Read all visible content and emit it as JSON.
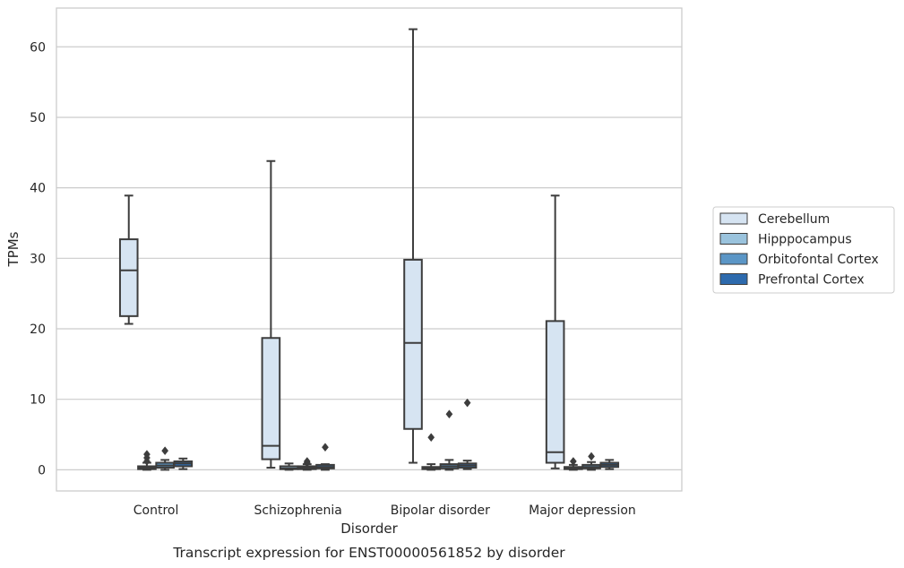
{
  "chart_data": {
    "type": "box",
    "title": "",
    "caption": "Transcript expression for ENST00000561852 by disorder",
    "xlabel": "Disorder",
    "ylabel": "TPMs",
    "ylim": [
      -3,
      65.5
    ],
    "yticks": [
      0,
      10,
      20,
      30,
      40,
      50,
      60
    ],
    "grid": "horizontal",
    "legend_placement": "right",
    "categories": [
      "Control",
      "Schizophrenia",
      "Bipolar disorder",
      "Major depression"
    ],
    "series": [
      {
        "name": "Cerebellum",
        "color": "#d6e4f2",
        "boxes": [
          {
            "whislo": 20.7,
            "q1": 21.8,
            "med": 28.3,
            "q3": 32.7,
            "whishi": 38.9,
            "fliers": []
          },
          {
            "whislo": 0.3,
            "q1": 1.5,
            "med": 3.4,
            "q3": 18.7,
            "whishi": 43.8,
            "fliers": []
          },
          {
            "whislo": 1.0,
            "q1": 5.8,
            "med": 18.0,
            "q3": 29.8,
            "whishi": 62.5,
            "fliers": []
          },
          {
            "whislo": 0.2,
            "q1": 1.0,
            "med": 2.5,
            "q3": 21.1,
            "whishi": 38.9,
            "fliers": []
          }
        ]
      },
      {
        "name": "Hipppocampus",
        "color": "#9ac3dd",
        "boxes": [
          {
            "whislo": 0.0,
            "q1": 0.1,
            "med": 0.3,
            "q3": 0.5,
            "whishi": 1.0,
            "fliers": [
              1.2,
              1.7,
              2.2
            ]
          },
          {
            "whislo": 0.0,
            "q1": 0.1,
            "med": 0.2,
            "q3": 0.5,
            "whishi": 0.9,
            "fliers": []
          },
          {
            "whislo": 0.0,
            "q1": 0.1,
            "med": 0.2,
            "q3": 0.4,
            "whishi": 0.8,
            "fliers": [
              4.6
            ]
          },
          {
            "whislo": 0.0,
            "q1": 0.1,
            "med": 0.2,
            "q3": 0.4,
            "whishi": 0.7,
            "fliers": [
              1.2
            ]
          }
        ]
      },
      {
        "name": "Orbitofontal Cortex",
        "color": "#5b96c6",
        "boxes": [
          {
            "whislo": 0.0,
            "q1": 0.3,
            "med": 0.6,
            "q3": 1.0,
            "whishi": 1.4,
            "fliers": [
              2.7
            ]
          },
          {
            "whislo": 0.0,
            "q1": 0.1,
            "med": 0.3,
            "q3": 0.5,
            "whishi": 0.8,
            "fliers": [
              1.0,
              1.2
            ]
          },
          {
            "whislo": 0.0,
            "q1": 0.2,
            "med": 0.5,
            "q3": 0.8,
            "whishi": 1.4,
            "fliers": [
              7.9
            ]
          },
          {
            "whislo": 0.0,
            "q1": 0.2,
            "med": 0.4,
            "q3": 0.7,
            "whishi": 1.1,
            "fliers": [
              1.9
            ]
          }
        ]
      },
      {
        "name": "Prefrontal Cortex",
        "color": "#2d6aad",
        "boxes": [
          {
            "whislo": 0.1,
            "q1": 0.5,
            "med": 0.9,
            "q3": 1.2,
            "whishi": 1.6,
            "fliers": []
          },
          {
            "whislo": 0.0,
            "q1": 0.2,
            "med": 0.4,
            "q3": 0.7,
            "whishi": 0.8,
            "fliers": [
              3.2
            ]
          },
          {
            "whislo": 0.1,
            "q1": 0.3,
            "med": 0.6,
            "q3": 0.9,
            "whishi": 1.3,
            "fliers": [
              9.5
            ]
          },
          {
            "whislo": 0.1,
            "q1": 0.4,
            "med": 0.7,
            "q3": 1.0,
            "whishi": 1.4,
            "fliers": []
          }
        ]
      }
    ]
  }
}
